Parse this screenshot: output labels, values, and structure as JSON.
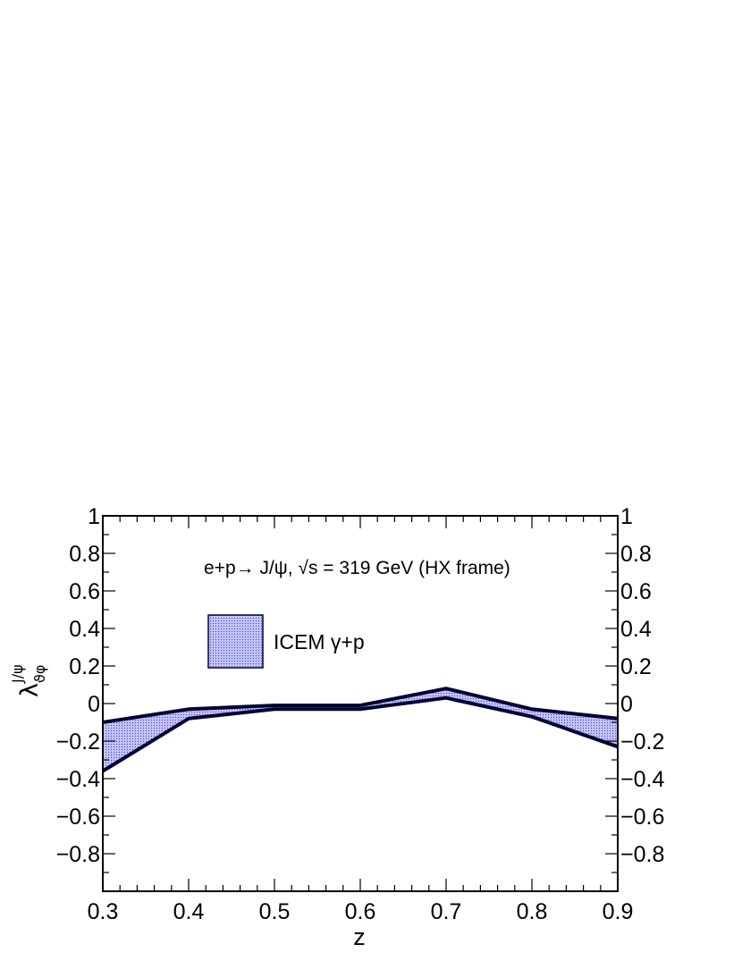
{
  "chart_data": {
    "type": "area",
    "xlabel": "z",
    "ylabel": {
      "base": "λ",
      "sub": "ϑφ",
      "sup": "J/ψ"
    },
    "xlim": [
      0.3,
      0.9
    ],
    "ylim": [
      -1,
      1
    ],
    "x_ticks": [
      "0.3",
      "0.4",
      "0.5",
      "0.6",
      "0.7",
      "0.8",
      "0.9"
    ],
    "y_ticks_left": [
      "−0.8",
      "−0.6",
      "−0.4",
      "−0.2",
      "0",
      "0.2",
      "0.4",
      "0.6",
      "0.8",
      "1"
    ],
    "y_ticks_right": [
      "−0.8",
      "−0.6",
      "−0.4",
      "−0.2",
      "0",
      "0.2",
      "0.4",
      "0.6",
      "0.8",
      "1"
    ],
    "annotation": "e+p→ J/ψ, √s = 319 GeV (HX frame)",
    "legend": {
      "label": "ICEM γ+p",
      "placement": "top-left"
    },
    "fill_color": "#b4b4f0",
    "line_color": "#000033",
    "series": [
      {
        "name": "ICEM γ+p",
        "x": [
          0.3,
          0.4,
          0.5,
          0.6,
          0.7,
          0.8,
          0.9
        ],
        "upper": [
          -0.1,
          -0.03,
          -0.01,
          -0.01,
          0.08,
          -0.03,
          -0.08
        ],
        "lower": [
          -0.36,
          -0.08,
          -0.03,
          -0.03,
          0.03,
          -0.07,
          -0.23
        ]
      }
    ],
    "grid": false
  }
}
